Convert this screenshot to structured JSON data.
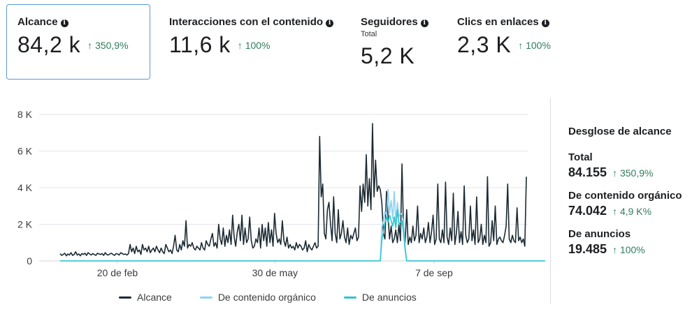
{
  "metrics": [
    {
      "label": "Alcance",
      "value": "84,2 k",
      "change": "350,9%",
      "sub": ""
    },
    {
      "label": "Interacciones con el contenido",
      "value": "11,6 k",
      "change": "100%",
      "sub": ""
    },
    {
      "label": "Seguidores",
      "value": "5,2 K",
      "change": "",
      "sub": "Total"
    },
    {
      "label": "Clics en enlaces",
      "value": "2,3 K",
      "change": "100%",
      "sub": ""
    }
  ],
  "icons": {
    "info": "info-icon",
    "up_arrow": "↑"
  },
  "colors": {
    "alcance": "#1c2b33",
    "organico": "#8ed3f5",
    "anuncios": "#2ec4d0",
    "positive": "#2f7d5b",
    "selected_border": "#5b9bd5"
  },
  "chart_data": {
    "type": "line",
    "ylim": [
      0,
      8000
    ],
    "yticks": [
      "0",
      "2 K",
      "4 K",
      "6 K",
      "8 K"
    ],
    "xticks": [
      "20 de feb",
      "30 de may",
      "7 de sep"
    ],
    "x_start": "2023-01-15",
    "x_end": "2023-11-04",
    "legend": "bottom",
    "series": [
      {
        "name": "Alcance",
        "color": "#1c2b33",
        "values": [
          400,
          300,
          350,
          420,
          280,
          380,
          320,
          450,
          300,
          350,
          500,
          320,
          380,
          280,
          400,
          350,
          420,
          300,
          450,
          380,
          320,
          400,
          350,
          300,
          420,
          380,
          350,
          400,
          300,
          450,
          350,
          320,
          380,
          420,
          350,
          300,
          400,
          380,
          320,
          450,
          400,
          350,
          380,
          320,
          400,
          900,
          500,
          700,
          400,
          800,
          500,
          600,
          350,
          900,
          600,
          700,
          500,
          800,
          450,
          600,
          700,
          500,
          800,
          600,
          450,
          700,
          500,
          400,
          900,
          700,
          500,
          600,
          400,
          800,
          1400,
          600,
          500,
          900,
          600,
          1100,
          800,
          2200,
          700,
          900,
          800,
          1000,
          700,
          600,
          800,
          700,
          600,
          1000,
          700,
          600,
          1100,
          900,
          800,
          1200,
          1500,
          800,
          1000,
          700,
          2000,
          1200,
          900,
          1800,
          800,
          1400,
          1000,
          1700,
          900,
          2500,
          1300,
          800,
          1600,
          2000,
          1100,
          2500,
          900,
          1800,
          1000,
          1200,
          2400,
          1100,
          700,
          800,
          1200,
          1000,
          1800,
          700,
          2000,
          1100,
          1800,
          800,
          2100,
          1000,
          1700,
          800,
          2600,
          1500,
          1000,
          1200,
          900,
          2200,
          1100,
          800,
          1300,
          700,
          900,
          700,
          800,
          600,
          1000,
          700,
          900,
          800,
          600,
          700,
          1100,
          500,
          900,
          700,
          600,
          800,
          1000,
          700,
          800,
          6800,
          3500,
          4200,
          1500,
          1200,
          2800,
          3200,
          2000,
          1100,
          3500,
          1500,
          1000,
          2800,
          1200,
          1500,
          2200,
          1300,
          1000,
          1800,
          900,
          1400,
          1200,
          1500,
          1800,
          1100,
          1300,
          4100,
          2700,
          4200,
          3200,
          5800,
          3000,
          4500,
          2800,
          7500,
          3500,
          5500,
          3800,
          4100,
          3900,
          3200,
          1500,
          1200,
          3800,
          2500,
          1200,
          1900,
          1000,
          1200,
          1700,
          1000,
          2000,
          1100,
          5300,
          1500,
          1000,
          2800,
          900,
          1300,
          1000,
          1900,
          1100,
          1400,
          3000,
          1000,
          1500,
          1200,
          1800,
          1000,
          1300,
          2100,
          1000,
          1600,
          2500,
          900,
          1200,
          4200,
          1200,
          1000,
          1700,
          1000,
          4300,
          1300,
          900,
          1800,
          1100,
          3700,
          900,
          1500,
          2700,
          1000,
          1600,
          900,
          4100,
          1400,
          1000,
          1200,
          3000,
          1100,
          1700,
          900,
          3500,
          1000,
          1200,
          2000,
          900,
          1400,
          1000,
          4600,
          800,
          1000,
          2200,
          1100,
          3000,
          900,
          1200,
          1300,
          1100,
          1000,
          1400,
          1900,
          4200,
          1200,
          1000,
          1400,
          1100,
          1000,
          2900,
          1100,
          1300,
          1000,
          1200,
          800,
          4600
        ]
      },
      {
        "name": "De contenido orgánico",
        "color": "#8ed3f5",
        "values": [
          0,
          0,
          0,
          0,
          0,
          0,
          0,
          0,
          0,
          0,
          0,
          0,
          0,
          0,
          0,
          0,
          0,
          0,
          0,
          0,
          0,
          0,
          0,
          0,
          0,
          0,
          0,
          0,
          0,
          0,
          0,
          0,
          0,
          0,
          0,
          0,
          0,
          0,
          0,
          0,
          0,
          0,
          0,
          0,
          0,
          0,
          0,
          0,
          0,
          0,
          0,
          0,
          0,
          0,
          0,
          0,
          0,
          0,
          0,
          0,
          0,
          0,
          0,
          0,
          0,
          0,
          0,
          0,
          0,
          0,
          0,
          0,
          0,
          0,
          0,
          0,
          0,
          0,
          0,
          0,
          0,
          0,
          0,
          0,
          0,
          0,
          0,
          0,
          0,
          0,
          0,
          0,
          0,
          0,
          0,
          0,
          0,
          0,
          0,
          0,
          0,
          0,
          0,
          0,
          0,
          0,
          0,
          0,
          0,
          0,
          0,
          0,
          0,
          0,
          0,
          0,
          0,
          0,
          0,
          0,
          0,
          0,
          0,
          0,
          0,
          0,
          0,
          0,
          0,
          0,
          0,
          0,
          0,
          0,
          0,
          0,
          0,
          0,
          0,
          0,
          0,
          0,
          0,
          0,
          0,
          0,
          0,
          0,
          0,
          0,
          0,
          0,
          0,
          0,
          0,
          0,
          0,
          0,
          0,
          0,
          0,
          0,
          0,
          0,
          0,
          0,
          0,
          0,
          0,
          0,
          0,
          0,
          0,
          0,
          0,
          0,
          0,
          0,
          0,
          0,
          0,
          0,
          0,
          0,
          0,
          0,
          0,
          0,
          0,
          0,
          0,
          0,
          0,
          0,
          0,
          0,
          0,
          0,
          0,
          0,
          0,
          0,
          0,
          0,
          0,
          0,
          0,
          1800,
          2200,
          2700,
          2500,
          3900,
          2600,
          3300,
          2300,
          3800,
          2100,
          3200,
          2400,
          2600,
          2500,
          2100,
          800,
          0,
          0,
          0,
          0,
          0,
          0,
          0,
          0,
          0,
          0,
          0,
          0,
          0,
          0,
          0,
          0,
          0,
          0,
          0,
          0,
          0,
          0,
          0,
          0,
          0,
          0,
          0,
          0,
          0,
          0,
          0,
          0,
          0,
          0,
          0,
          0,
          0,
          0,
          0,
          0,
          0,
          0,
          0,
          0,
          0,
          0,
          0,
          0,
          0,
          0,
          0,
          0,
          0,
          0,
          0,
          0,
          0,
          0,
          0,
          0,
          0,
          0,
          0,
          0,
          0,
          0,
          0,
          0,
          0,
          0,
          0,
          0,
          0,
          0,
          0,
          0,
          0,
          0,
          0,
          0,
          0,
          0,
          0,
          0,
          0,
          0,
          0,
          0,
          0,
          0,
          0,
          0,
          0,
          0,
          0
        ]
      },
      {
        "name": "De anuncios",
        "color": "#2ec4d0",
        "values": [
          0,
          0,
          0,
          0,
          0,
          0,
          0,
          0,
          0,
          0,
          0,
          0,
          0,
          0,
          0,
          0,
          0,
          0,
          0,
          0,
          0,
          0,
          0,
          0,
          0,
          0,
          0,
          0,
          0,
          0,
          0,
          0,
          0,
          0,
          0,
          0,
          0,
          0,
          0,
          0,
          0,
          0,
          0,
          0,
          0,
          0,
          0,
          0,
          0,
          0,
          0,
          0,
          0,
          0,
          0,
          0,
          0,
          0,
          0,
          0,
          0,
          0,
          0,
          0,
          0,
          0,
          0,
          0,
          0,
          0,
          0,
          0,
          0,
          0,
          0,
          0,
          0,
          0,
          0,
          0,
          0,
          0,
          0,
          0,
          0,
          0,
          0,
          0,
          0,
          0,
          0,
          0,
          0,
          0,
          0,
          0,
          0,
          0,
          0,
          0,
          0,
          0,
          0,
          0,
          0,
          0,
          0,
          0,
          0,
          0,
          0,
          0,
          0,
          0,
          0,
          0,
          0,
          0,
          0,
          0,
          0,
          0,
          0,
          0,
          0,
          0,
          0,
          0,
          0,
          0,
          0,
          0,
          0,
          0,
          0,
          0,
          0,
          0,
          0,
          0,
          0,
          0,
          0,
          0,
          0,
          0,
          0,
          0,
          0,
          0,
          0,
          0,
          0,
          0,
          0,
          0,
          0,
          0,
          0,
          0,
          0,
          0,
          0,
          0,
          0,
          0,
          0,
          0,
          0,
          0,
          0,
          0,
          0,
          0,
          0,
          0,
          0,
          0,
          0,
          0,
          0,
          0,
          0,
          0,
          0,
          0,
          0,
          0,
          0,
          0,
          0,
          0,
          0,
          0,
          0,
          0,
          0,
          0,
          0,
          0,
          0,
          0,
          0,
          0,
          0,
          0,
          0,
          1100,
          1600,
          2100,
          2400,
          2100,
          2500,
          2200,
          1900,
          2400,
          1800,
          2800,
          2000,
          2100,
          2200,
          1500,
          600,
          0,
          0,
          0,
          0,
          0,
          0,
          0,
          0,
          0,
          0,
          0,
          0,
          0,
          0,
          0,
          0,
          0,
          0,
          0,
          0,
          0,
          0,
          0,
          0,
          0,
          0,
          0,
          0,
          0,
          0,
          0,
          0,
          0,
          0,
          0,
          0,
          0,
          0,
          0,
          0,
          0,
          0,
          0,
          0,
          0,
          0,
          0,
          0,
          0,
          0,
          0,
          0,
          0,
          0,
          0,
          0,
          0,
          0,
          0,
          0,
          0,
          0,
          0,
          0,
          0,
          0,
          0,
          0,
          0,
          0,
          0,
          0,
          0,
          0,
          0,
          0,
          0,
          0,
          0,
          0,
          0,
          0,
          0,
          0,
          0,
          0,
          0,
          0,
          0,
          0,
          0,
          0,
          0,
          0,
          0
        ]
      }
    ]
  },
  "breakdown": {
    "title": "Desglose de alcance",
    "rows": [
      {
        "label": "Total",
        "value": "84.155",
        "change": "350,9%"
      },
      {
        "label": "De contenido orgánico",
        "value": "74.042",
        "change": "4,9 K%"
      },
      {
        "label": "De anuncios",
        "value": "19.485",
        "change": "100%"
      }
    ]
  }
}
